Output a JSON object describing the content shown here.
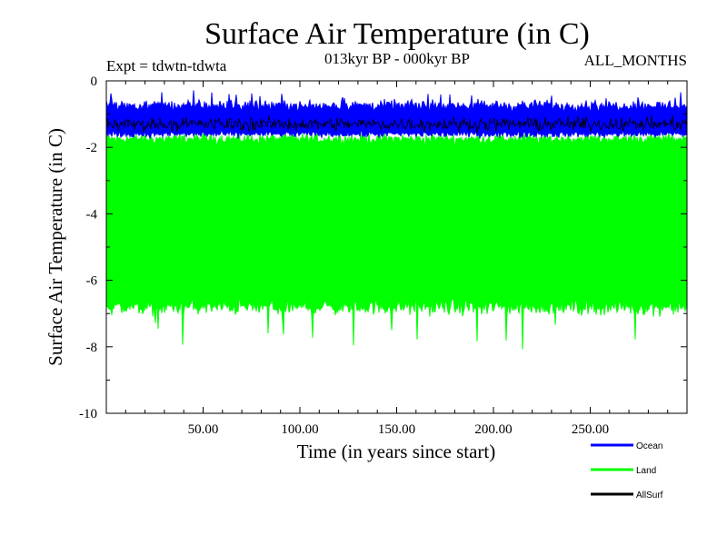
{
  "chart_data": {
    "type": "line",
    "title": "Surface Air Temperature (in C)",
    "subtitle": "013kyr BP - 000kyr BP",
    "experiment_label": "Expt = tdwtn-tdwta",
    "period_label": "ALL_MONTHS",
    "xlabel": "Time (in years since start)",
    "ylabel": "Surface Air Temperature (in C)",
    "xlim": [
      0,
      300
    ],
    "ylim": [
      -10,
      0
    ],
    "x_ticks": [
      50,
      100,
      150,
      200,
      250
    ],
    "x_tick_labels": [
      "50.00",
      "100.00",
      "150.00",
      "200.00",
      "250.00"
    ],
    "y_ticks": [
      0,
      -2,
      -4,
      -6,
      -8,
      -10
    ],
    "y_tick_labels": [
      "0",
      "-2",
      "-4",
      "-6",
      "-8",
      "-10"
    ],
    "series": [
      {
        "name": "Land",
        "color": "#00ff00",
        "envelope": {
          "upper_mean": -1.75,
          "upper_spread": 0.25,
          "lower_mean": -6.8,
          "lower_spread": 0.35,
          "lower_extreme": -8.1
        }
      },
      {
        "name": "Ocean",
        "color": "#0000ff",
        "envelope": {
          "upper_mean": -0.75,
          "upper_spread": 0.25,
          "lower_mean": -1.6,
          "lower_spread": 0.15,
          "upper_extreme": 0.0
        }
      },
      {
        "name": "AllSurf",
        "color": "#000000",
        "envelope": {
          "mean": -1.3,
          "spread": 0.3
        }
      }
    ],
    "legend": [
      {
        "name": "Ocean",
        "color": "#0000ff"
      },
      {
        "name": "Land",
        "color": "#00ff00"
      },
      {
        "name": "AllSurf",
        "color": "#000000"
      }
    ]
  }
}
